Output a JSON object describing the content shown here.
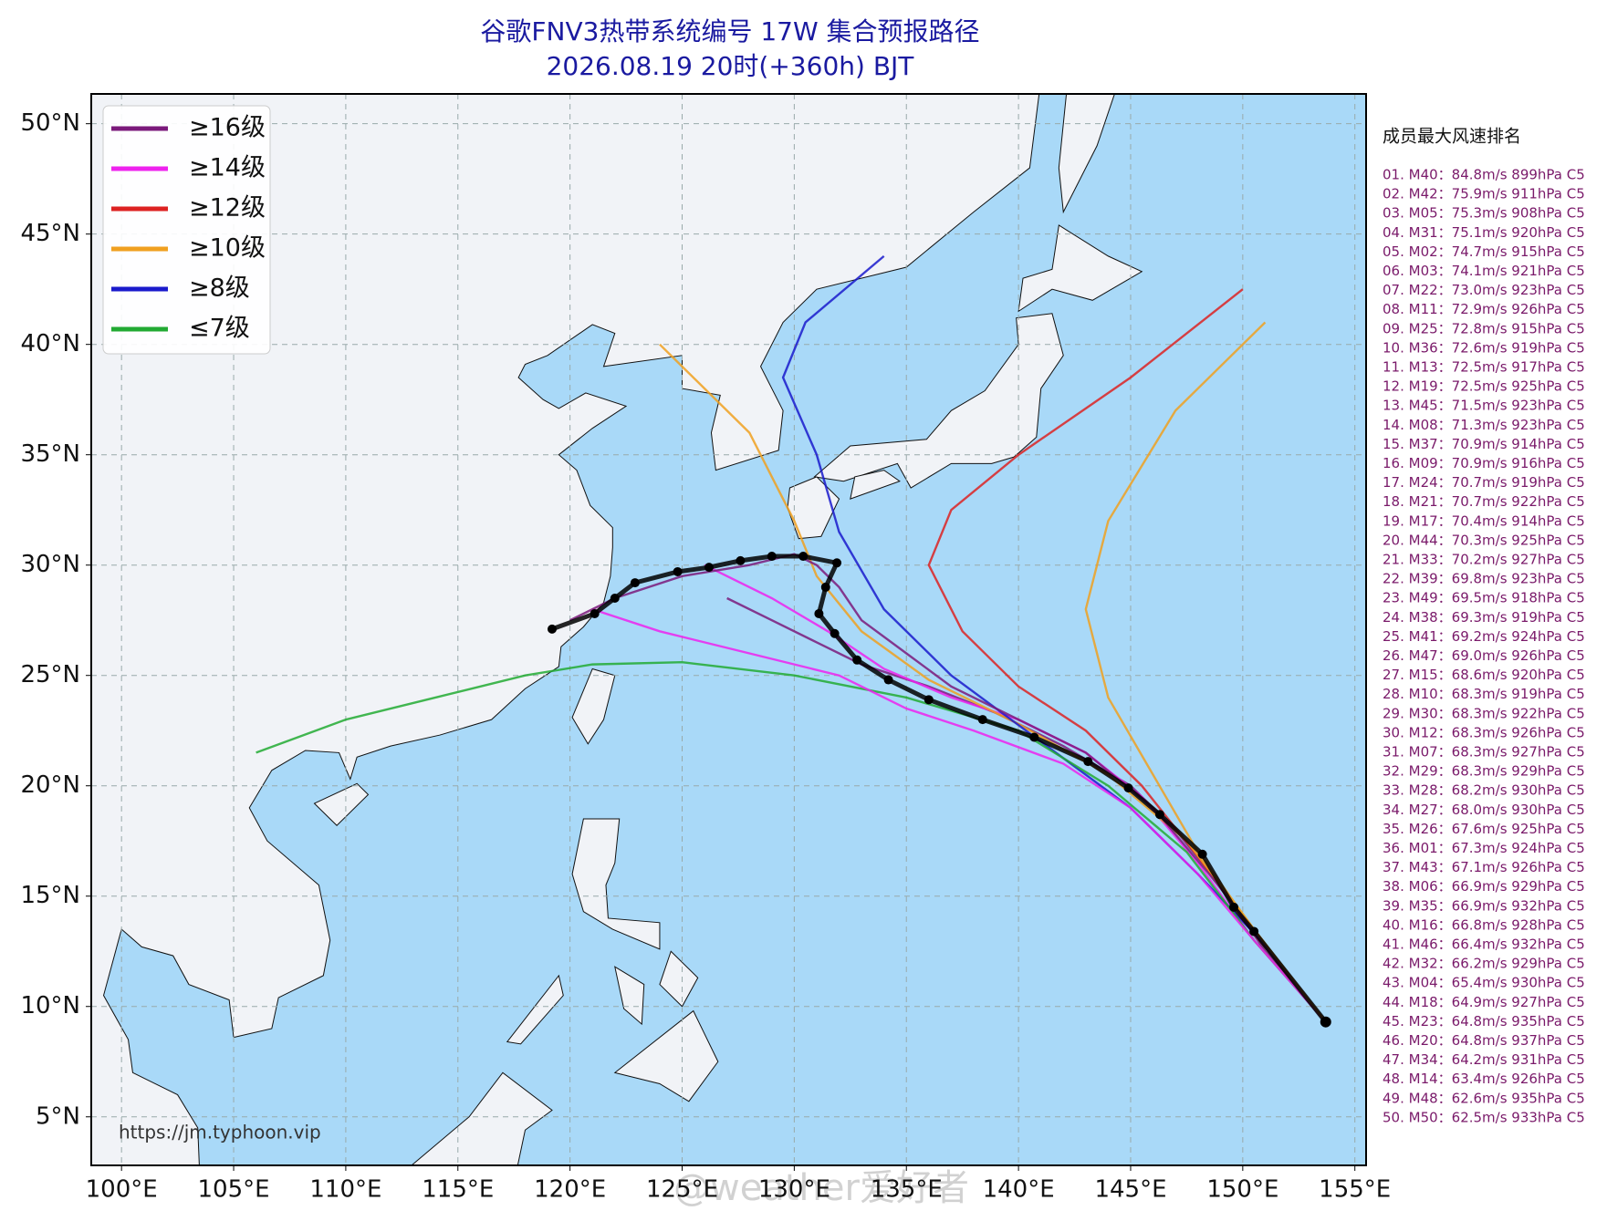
{
  "chart_data": {
    "type": "track-map",
    "title": "谷歌FNV3热带系统编号 17W 集合预报路径",
    "subtitle": "2026.08.19 20时(+360h) BJT",
    "xlim": [
      98.65,
      155.5
    ],
    "ylim": [
      2.8,
      51.35
    ],
    "xticks": [
      {
        "value": 100,
        "label": "100°E"
      },
      {
        "value": 105,
        "label": "105°E"
      },
      {
        "value": 110,
        "label": "110°E"
      },
      {
        "value": 115,
        "label": "115°E"
      },
      {
        "value": 120,
        "label": "120°E"
      },
      {
        "value": 125,
        "label": "125°E"
      },
      {
        "value": 130,
        "label": "130°E"
      },
      {
        "value": 135,
        "label": "135°E"
      },
      {
        "value": 140,
        "label": "140°E"
      },
      {
        "value": 145,
        "label": "145°E"
      },
      {
        "value": 150,
        "label": "150°E"
      },
      {
        "value": 155,
        "label": "155°E"
      }
    ],
    "yticks": [
      {
        "value": 5,
        "label": "5°N"
      },
      {
        "value": 10,
        "label": "10°N"
      },
      {
        "value": 15,
        "label": "15°N"
      },
      {
        "value": 20,
        "label": "20°N"
      },
      {
        "value": 25,
        "label": "25°N"
      },
      {
        "value": 30,
        "label": "30°N"
      },
      {
        "value": 35,
        "label": "35°N"
      },
      {
        "value": 40,
        "label": "40°N"
      },
      {
        "value": 45,
        "label": "45°N"
      },
      {
        "value": 50,
        "label": "50°N"
      }
    ],
    "grid": true,
    "legend": [
      {
        "name": "≥16级",
        "color": "#7b1a7b"
      },
      {
        "name": "≥14级",
        "color": "#ee22ee"
      },
      {
        "name": "≥12级",
        "color": "#dd2222"
      },
      {
        "name": "≥10级",
        "color": "#f0a020"
      },
      {
        "name": "≥8级",
        "color": "#1a1acc"
      },
      {
        "name": "≤7级",
        "color": "#22aa33"
      }
    ],
    "tracks": [
      {
        "color": "#7b1a7b",
        "lon": [
          153.7,
          151,
          149,
          147,
          145,
          142,
          139,
          136,
          133,
          131,
          129,
          127
        ],
        "lat": [
          9.3,
          12.5,
          15.5,
          18,
          20,
          21.8,
          23.3,
          24.5,
          25.5,
          26.5,
          27.5,
          28.5
        ]
      },
      {
        "color": "#ee22ee",
        "lon": [
          153.7,
          150.5,
          148,
          145.5,
          143,
          140,
          137,
          134,
          131.5,
          129,
          126
        ],
        "lat": [
          9.3,
          13,
          16.5,
          19.5,
          21.5,
          23,
          24,
          25.3,
          27,
          28.5,
          30
        ]
      },
      {
        "color": "#dd2222",
        "lon": [
          153.7,
          150.5,
          148,
          145.5,
          143,
          140,
          137.5,
          136,
          137,
          140,
          145,
          150
        ],
        "lat": [
          9.3,
          13.3,
          16.8,
          20,
          22.5,
          24.5,
          27,
          30,
          32.5,
          35,
          38.5,
          42.5
        ]
      },
      {
        "color": "#f0a020",
        "lon": [
          153.7,
          150.5,
          147.5,
          144,
          140,
          136,
          133,
          131,
          130,
          129,
          128,
          126,
          124
        ],
        "lat": [
          9.3,
          13.5,
          17.5,
          20.5,
          22.8,
          24.8,
          27,
          29.5,
          32,
          34,
          36,
          38,
          40
        ]
      },
      {
        "color": "#1a1acc",
        "lon": [
          153.7,
          150.8,
          148,
          145,
          141,
          137,
          134,
          132,
          131,
          129.5,
          130.5,
          134
        ],
        "lat": [
          9.3,
          13,
          16,
          19,
          22,
          25,
          28,
          31.5,
          35,
          38.5,
          41,
          44
        ]
      },
      {
        "color": "#22aa33",
        "lon": [
          153.7,
          150.5,
          147.5,
          144,
          140,
          135,
          130,
          125,
          121,
          118,
          114,
          110,
          106
        ],
        "lat": [
          9.3,
          13,
          17,
          20,
          22.5,
          24,
          25,
          25.6,
          25.5,
          25,
          24,
          23,
          21.5
        ]
      },
      {
        "color": "#ee22ee",
        "lon": [
          153.7,
          150.5,
          148,
          145,
          142,
          138,
          135,
          132,
          128,
          124,
          121
        ],
        "lat": [
          9.3,
          13,
          16,
          19,
          21,
          22.5,
          23.5,
          25,
          26,
          27,
          28
        ]
      },
      {
        "color": "#7b1a7b",
        "lon": [
          153.7,
          151,
          148.5,
          146,
          143,
          140,
          137,
          135,
          133,
          132,
          131,
          130,
          128,
          125,
          122,
          120
        ],
        "lat": [
          9.3,
          12.8,
          16,
          19,
          21.5,
          23,
          24.5,
          26,
          27.5,
          29,
          30,
          30.5,
          30,
          29.5,
          28.5,
          27.5
        ]
      },
      {
        "color": "#f0a020",
        "lon": [
          153.7,
          150.5,
          148,
          146,
          144,
          143,
          144,
          147,
          151
        ],
        "lat": [
          9.3,
          13.5,
          17,
          20.5,
          24,
          28,
          32,
          37,
          41
        ]
      }
    ],
    "mean_track": {
      "color": "#000000",
      "lon": [
        153.7,
        150.5,
        149.6,
        148.2,
        146.3,
        144.9,
        143.1,
        140.7,
        138.4,
        136,
        134.2,
        132.8,
        131.8,
        131.1,
        131.4,
        131.9,
        130.4,
        129,
        127.6,
        126.2,
        124.8,
        122.9,
        122,
        121.1,
        119.2
      ],
      "lat": [
        9.3,
        13.4,
        14.5,
        16.9,
        18.7,
        19.9,
        21.1,
        22.2,
        23,
        23.9,
        24.8,
        25.7,
        26.9,
        27.8,
        29,
        30.1,
        30.4,
        30.4,
        30.2,
        29.9,
        29.7,
        29.2,
        28.5,
        27.8,
        27.1
      ]
    },
    "ranking": {
      "title": "成员最大风速排名",
      "entries": [
        "01. M40：84.8m/s 899hPa C5",
        "02. M42：75.9m/s 911hPa C5",
        "03. M05：75.3m/s 908hPa C5",
        "04. M31：75.1m/s 920hPa C5",
        "05. M02：74.7m/s 915hPa C5",
        "06. M03：74.1m/s 921hPa C5",
        "07. M22：73.0m/s 923hPa C5",
        "08. M11：72.9m/s 926hPa C5",
        "09. M25：72.8m/s 915hPa C5",
        "10. M36：72.6m/s 919hPa C5",
        "11. M13：72.5m/s 917hPa C5",
        "12. M19：72.5m/s 925hPa C5",
        "13. M45：71.5m/s 923hPa C5",
        "14. M08：71.3m/s 923hPa C5",
        "15. M37：70.9m/s 914hPa C5",
        "16. M09：70.9m/s 916hPa C5",
        "17. M24：70.7m/s 919hPa C5",
        "18. M21：70.7m/s 922hPa C5",
        "19. M17：70.4m/s 914hPa C5",
        "20. M44：70.3m/s 925hPa C5",
        "21. M33：70.2m/s 927hPa C5",
        "22. M39：69.8m/s 923hPa C5",
        "23. M49：69.5m/s 918hPa C5",
        "24. M38：69.3m/s 919hPa C5",
        "25. M41：69.2m/s 924hPa C5",
        "26. M47：69.0m/s 926hPa C5",
        "27. M15：68.6m/s 920hPa C5",
        "28. M10：68.3m/s 919hPa C5",
        "29. M30：68.3m/s 922hPa C5",
        "30. M12：68.3m/s 926hPa C5",
        "31. M07：68.3m/s 927hPa C5",
        "32. M29：68.3m/s 929hPa C5",
        "33. M28：68.2m/s 930hPa C5",
        "34. M27：68.0m/s 930hPa C5",
        "35. M26：67.6m/s 925hPa C5",
        "36. M01：67.3m/s 924hPa C5",
        "37. M43：67.1m/s 926hPa C5",
        "38. M06：66.9m/s 929hPa C5",
        "39. M35：66.9m/s 932hPa C5",
        "40. M16：66.8m/s 928hPa C5",
        "41. M46：66.4m/s 932hPa C5",
        "42. M32：66.2m/s 929hPa C5",
        "43. M04：65.4m/s 930hPa C5",
        "44. M18：64.9m/s 927hPa C5",
        "45. M23：64.8m/s 935hPa C5",
        "46. M20：64.8m/s 937hPa C5",
        "47. M34：64.2m/s 931hPa C5",
        "48. M14：63.4m/s 926hPa C5",
        "49. M48：62.6m/s 935hPa C5",
        "50. M50：62.5m/s 933hPa C5"
      ]
    },
    "source": "https://jm.typhoon.vip",
    "watermark": "@weather爱好者"
  }
}
